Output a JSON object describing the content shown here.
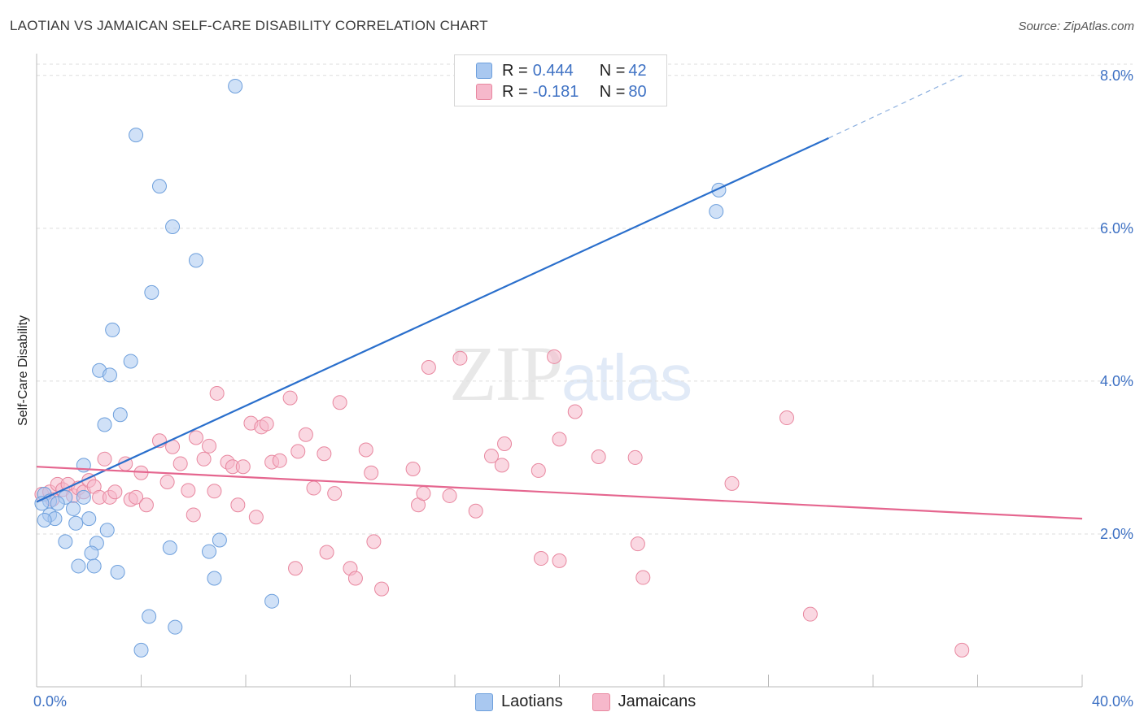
{
  "header": {
    "title": "LAOTIAN VS JAMAICAN SELF-CARE DISABILITY CORRELATION CHART",
    "source": "Source: ZipAtlas.com"
  },
  "watermark": {
    "zip": "ZIP",
    "atlas": "atlas"
  },
  "legend": {
    "rows": [
      {
        "r_label": "R = ",
        "r_value": "0.444",
        "n_label": "N = ",
        "n_value": "42",
        "color": "#a9c8f0"
      },
      {
        "r_label": "R = ",
        "r_value": "-0.181",
        "n_label": "N = ",
        "n_value": "80",
        "color": "#f6b8cb"
      }
    ]
  },
  "bottom_legend": {
    "series1": "Laotians",
    "series2": "Jamaicans"
  },
  "chart_data": {
    "type": "scatter",
    "title": "LAOTIAN VS JAMAICAN SELF-CARE DISABILITY CORRELATION CHART",
    "xlabel": "",
    "ylabel": "Self-Care Disability",
    "xlim": [
      0,
      40
    ],
    "ylim": [
      0,
      8.2
    ],
    "x_ticks": [
      "0.0%",
      "40.0%"
    ],
    "y_ticks": [
      {
        "value": 2,
        "label": "2.0%"
      },
      {
        "value": 4,
        "label": "4.0%"
      },
      {
        "value": 6,
        "label": "6.0%"
      },
      {
        "value": 8,
        "label": "8.0%"
      }
    ],
    "grid": "horizontal dashed",
    "legend_position": "top-center",
    "series": [
      {
        "name": "Laotians",
        "color": "#a9c8f0",
        "stroke": "#6d9fdc",
        "trend": {
          "x0": 0,
          "y0": 2.42,
          "x1": 30.3,
          "y1": 7.18,
          "dash_to_x": 35.4,
          "dash_to_y": 8.0,
          "color": "#2a6fcc"
        },
        "points": [
          [
            7.6,
            7.86
          ],
          [
            3.8,
            7.22
          ],
          [
            4.7,
            6.55
          ],
          [
            5.2,
            6.02
          ],
          [
            6.1,
            5.58
          ],
          [
            4.4,
            5.16
          ],
          [
            2.9,
            4.67
          ],
          [
            3.6,
            4.26
          ],
          [
            2.4,
            4.14
          ],
          [
            2.8,
            4.08
          ],
          [
            3.2,
            3.56
          ],
          [
            2.6,
            3.43
          ],
          [
            1.8,
            2.9
          ],
          [
            0.3,
            2.52
          ],
          [
            1.1,
            2.48
          ],
          [
            1.8,
            2.48
          ],
          [
            0.5,
            2.43
          ],
          [
            0.2,
            2.4
          ],
          [
            0.8,
            2.4
          ],
          [
            1.4,
            2.33
          ],
          [
            0.5,
            2.25
          ],
          [
            0.7,
            2.2
          ],
          [
            2.0,
            2.2
          ],
          [
            0.3,
            2.18
          ],
          [
            1.5,
            2.14
          ],
          [
            2.7,
            2.05
          ],
          [
            1.1,
            1.9
          ],
          [
            2.3,
            1.88
          ],
          [
            5.1,
            1.82
          ],
          [
            7.0,
            1.92
          ],
          [
            6.6,
            1.77
          ],
          [
            2.1,
            1.75
          ],
          [
            1.6,
            1.58
          ],
          [
            2.2,
            1.58
          ],
          [
            3.1,
            1.5
          ],
          [
            6.8,
            1.42
          ],
          [
            9.0,
            1.12
          ],
          [
            4.3,
            0.92
          ],
          [
            5.3,
            0.78
          ],
          [
            4.0,
            0.48
          ],
          [
            26.0,
            6.22
          ],
          [
            26.1,
            6.5
          ]
        ]
      },
      {
        "name": "Jamaicans",
        "color": "#f6b8cb",
        "stroke": "#e8879f",
        "trend": {
          "x0": 0,
          "y0": 2.88,
          "x1": 40,
          "y1": 2.2,
          "color": "#e5668f"
        },
        "points": [
          [
            0.2,
            2.52
          ],
          [
            0.5,
            2.55
          ],
          [
            0.6,
            2.45
          ],
          [
            0.8,
            2.65
          ],
          [
            1.0,
            2.58
          ],
          [
            1.2,
            2.65
          ],
          [
            1.4,
            2.5
          ],
          [
            1.6,
            2.6
          ],
          [
            1.8,
            2.55
          ],
          [
            2.0,
            2.7
          ],
          [
            2.2,
            2.62
          ],
          [
            2.4,
            2.48
          ],
          [
            2.6,
            2.98
          ],
          [
            2.8,
            2.48
          ],
          [
            3.0,
            2.55
          ],
          [
            3.4,
            2.92
          ],
          [
            3.6,
            2.45
          ],
          [
            3.8,
            2.48
          ],
          [
            4.0,
            2.8
          ],
          [
            4.2,
            2.38
          ],
          [
            4.7,
            3.22
          ],
          [
            5.0,
            2.68
          ],
          [
            5.2,
            3.14
          ],
          [
            5.5,
            2.92
          ],
          [
            5.8,
            2.57
          ],
          [
            6.0,
            2.25
          ],
          [
            6.1,
            3.26
          ],
          [
            6.4,
            2.98
          ],
          [
            6.6,
            3.15
          ],
          [
            6.8,
            2.56
          ],
          [
            6.9,
            3.84
          ],
          [
            7.3,
            2.94
          ],
          [
            7.5,
            2.88
          ],
          [
            7.7,
            2.38
          ],
          [
            7.9,
            2.88
          ],
          [
            8.2,
            3.45
          ],
          [
            8.4,
            2.22
          ],
          [
            8.6,
            3.4
          ],
          [
            8.8,
            3.44
          ],
          [
            9.0,
            2.94
          ],
          [
            9.3,
            2.96
          ],
          [
            9.7,
            3.78
          ],
          [
            9.9,
            1.55
          ],
          [
            10.0,
            3.08
          ],
          [
            10.3,
            3.3
          ],
          [
            10.6,
            2.6
          ],
          [
            11.0,
            3.05
          ],
          [
            11.1,
            1.76
          ],
          [
            11.4,
            2.53
          ],
          [
            11.6,
            3.72
          ],
          [
            12.0,
            1.55
          ],
          [
            12.2,
            1.42
          ],
          [
            12.6,
            3.1
          ],
          [
            12.8,
            2.8
          ],
          [
            12.9,
            1.9
          ],
          [
            13.2,
            1.28
          ],
          [
            14.4,
            2.85
          ],
          [
            14.6,
            2.38
          ],
          [
            14.8,
            2.53
          ],
          [
            15.0,
            4.18
          ],
          [
            15.8,
            2.5
          ],
          [
            16.2,
            4.3
          ],
          [
            16.8,
            2.3
          ],
          [
            17.4,
            3.02
          ],
          [
            17.8,
            2.9
          ],
          [
            17.9,
            3.18
          ],
          [
            19.2,
            2.83
          ],
          [
            19.3,
            1.68
          ],
          [
            19.8,
            4.32
          ],
          [
            20.0,
            3.24
          ],
          [
            20.0,
            1.65
          ],
          [
            20.6,
            3.6
          ],
          [
            21.5,
            3.01
          ],
          [
            22.9,
            3.0
          ],
          [
            23.0,
            1.87
          ],
          [
            23.2,
            1.43
          ],
          [
            26.6,
            2.66
          ],
          [
            28.7,
            3.52
          ],
          [
            29.6,
            0.95
          ],
          [
            35.4,
            0.48
          ]
        ]
      }
    ]
  }
}
